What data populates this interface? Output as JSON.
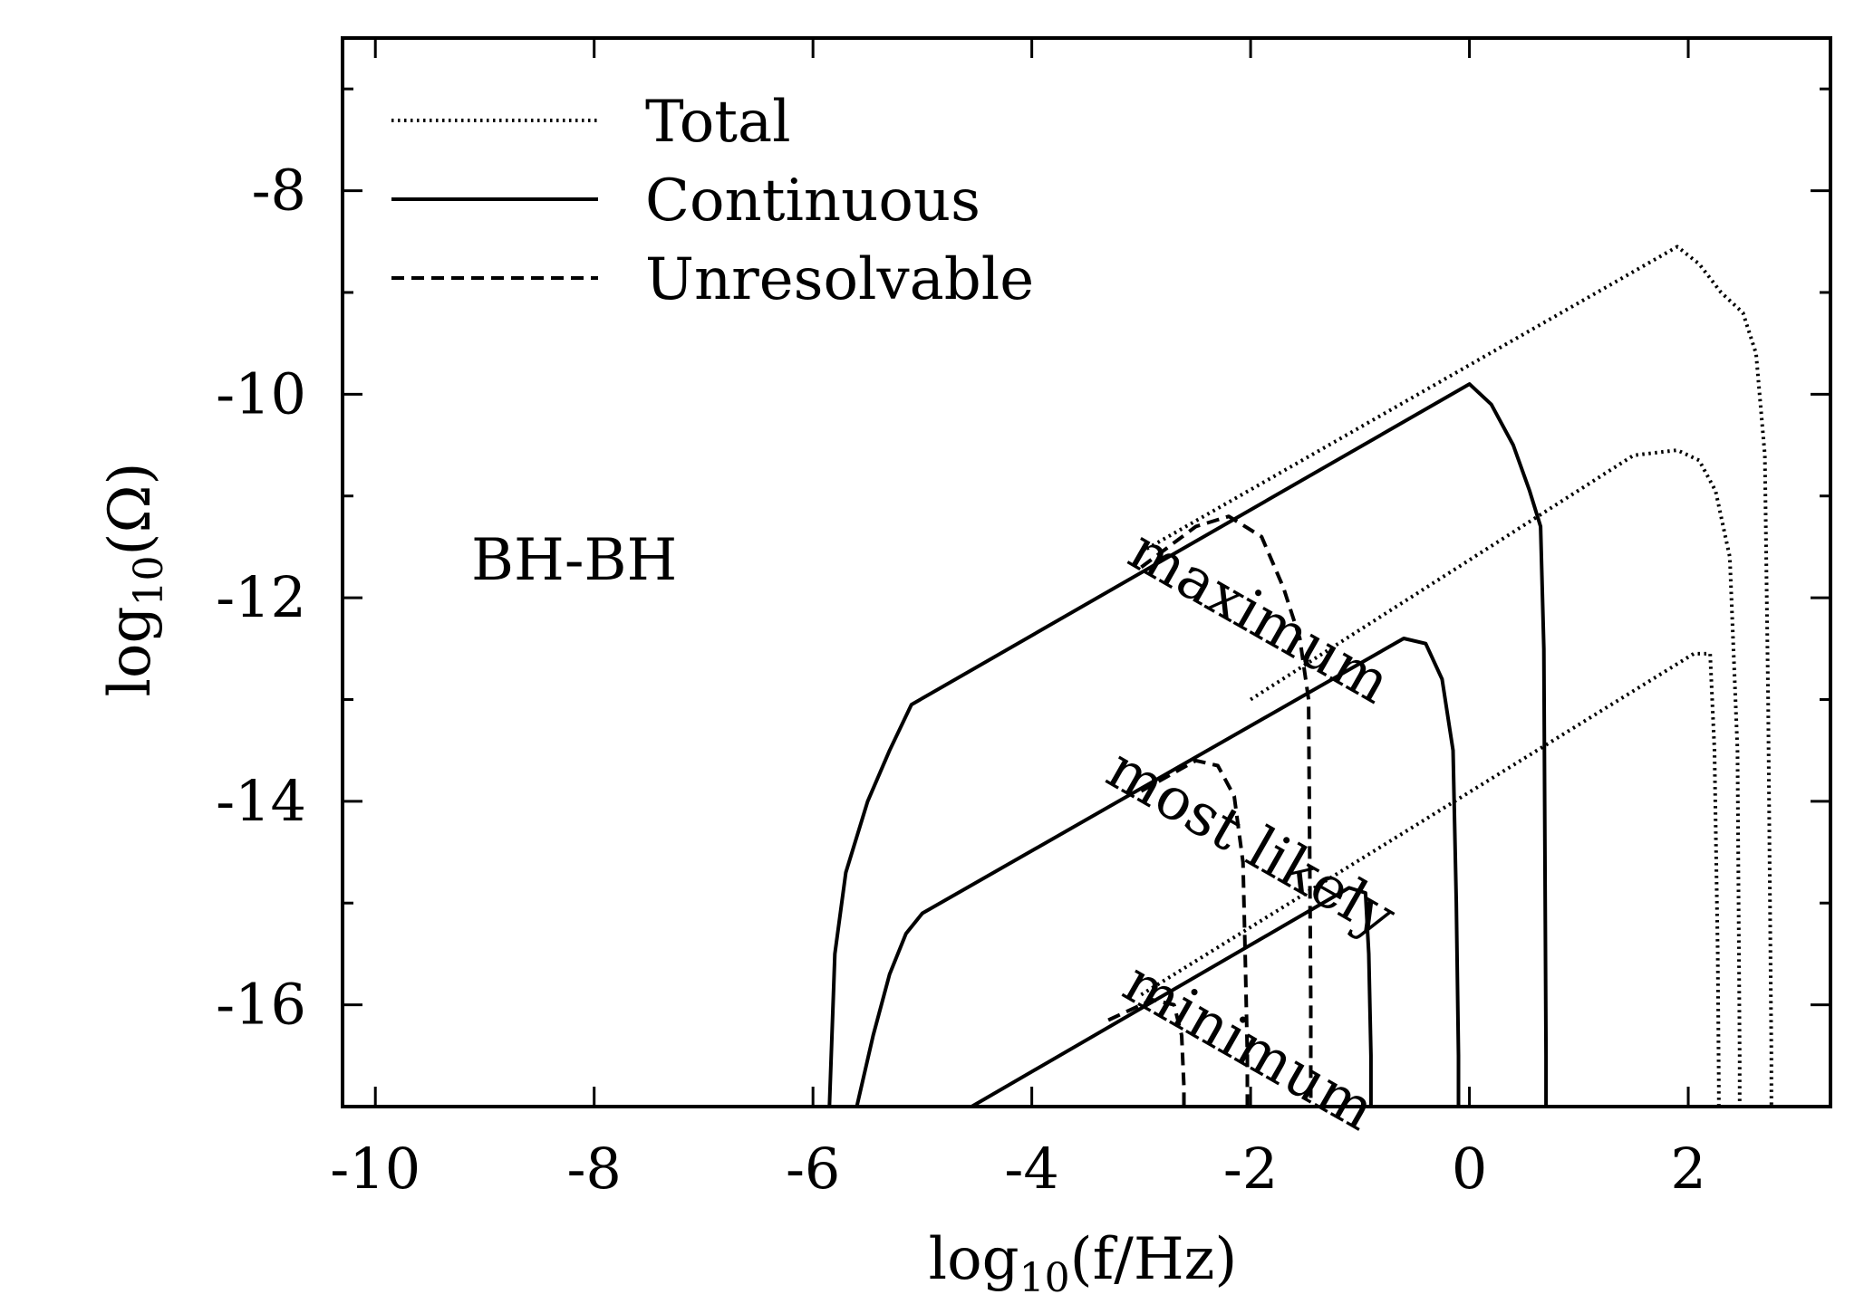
{
  "chart_data": {
    "type": "line",
    "title": "",
    "annotation": "BH-BH",
    "xlabel": {
      "prefix": "log",
      "sub": "10",
      "arg": "(f/Hz)"
    },
    "ylabel": {
      "prefix": "log",
      "sub": "10",
      "arg": "(Ω)"
    },
    "xlim": [
      -10.3,
      3.3
    ],
    "ylim": [
      -17,
      -6.5
    ],
    "xticks": [
      -10,
      -8,
      -6,
      -4,
      -2,
      0,
      2
    ],
    "xtick_labels": [
      "-10",
      "-8",
      "-6",
      "-4",
      "-2",
      "0",
      "2"
    ],
    "yticks": [
      -16,
      -14,
      -12,
      -10,
      -8
    ],
    "ytick_labels": [
      "-16",
      "-14",
      "-12",
      "-10",
      "-8"
    ],
    "legend": {
      "position": "top-left",
      "entries": [
        {
          "label": "Total",
          "style": "dotted"
        },
        {
          "label": "Continuous",
          "style": "solid"
        },
        {
          "label": "Unresolvable",
          "style": "dashed"
        }
      ]
    },
    "curve_labels": [
      {
        "text": "maximum",
        "x": -3.15,
        "y": -11.65
      },
      {
        "text": "most likely",
        "x": -3.35,
        "y": -13.8
      },
      {
        "text": "minimum",
        "x": -3.2,
        "y": -15.9
      }
    ],
    "series": [
      {
        "scenario": "maximum",
        "style": "dotted",
        "x": [
          -3.0,
          1.9,
          2.1,
          2.3,
          2.5,
          2.62,
          2.7,
          2.73,
          2.76,
          2.76
        ],
        "y": [
          -11.55,
          -8.55,
          -8.72,
          -9.0,
          -9.2,
          -9.6,
          -10.6,
          -13.0,
          -16.5,
          -17.0
        ]
      },
      {
        "scenario": "maximum",
        "style": "solid",
        "x": [
          -5.85,
          -5.8,
          -5.7,
          -5.5,
          -5.3,
          -5.1,
          0.0,
          0.2,
          0.4,
          0.55,
          0.65,
          0.68,
          0.7,
          0.7
        ],
        "y": [
          -17.0,
          -15.5,
          -14.7,
          -14.0,
          -13.5,
          -13.05,
          -9.9,
          -10.1,
          -10.5,
          -10.95,
          -11.3,
          -12.5,
          -16.5,
          -17.0
        ]
      },
      {
        "scenario": "maximum",
        "style": "dashed",
        "x": [
          -3.0,
          -2.5,
          -2.2,
          -1.9,
          -1.7,
          -1.55,
          -1.47,
          -1.45,
          -1.45
        ],
        "y": [
          -11.7,
          -11.3,
          -11.2,
          -11.4,
          -11.9,
          -12.4,
          -13.0,
          -16.0,
          -17.0
        ]
      },
      {
        "scenario": "most likely",
        "style": "dotted",
        "x": [
          -2.0,
          1.5,
          1.9,
          2.1,
          2.25,
          2.38,
          2.45,
          2.47,
          2.47
        ],
        "y": [
          -13.0,
          -10.6,
          -10.55,
          -10.65,
          -10.95,
          -11.6,
          -13.5,
          -16.5,
          -17.0
        ]
      },
      {
        "scenario": "most likely",
        "style": "solid",
        "x": [
          -5.6,
          -5.45,
          -5.3,
          -5.15,
          -5.0,
          -0.6,
          -0.4,
          -0.25,
          -0.15,
          -0.12,
          -0.1,
          -0.1
        ],
        "y": [
          -17.0,
          -16.3,
          -15.7,
          -15.3,
          -15.1,
          -12.4,
          -12.45,
          -12.8,
          -13.5,
          -15.0,
          -16.5,
          -17.0
        ]
      },
      {
        "scenario": "most likely",
        "style": "dashed",
        "x": [
          -3.0,
          -2.5,
          -2.3,
          -2.15,
          -2.07,
          -2.05,
          -2.03,
          -2.03
        ],
        "y": [
          -13.9,
          -13.6,
          -13.65,
          -13.95,
          -14.6,
          -15.5,
          -16.5,
          -17.0
        ]
      },
      {
        "scenario": "minimum",
        "style": "dotted",
        "x": [
          -3.0,
          2.05,
          2.2,
          2.24,
          2.27,
          2.28,
          2.28
        ],
        "y": [
          -15.9,
          -12.55,
          -12.55,
          -13.5,
          -15.5,
          -16.8,
          -17.0
        ]
      },
      {
        "scenario": "minimum",
        "style": "solid",
        "x": [
          -4.55,
          -1.1,
          -0.95,
          -0.92,
          -0.9,
          -0.9
        ],
        "y": [
          -17.0,
          -14.85,
          -14.9,
          -15.5,
          -16.5,
          -17.0
        ]
      },
      {
        "scenario": "minimum",
        "style": "dashed",
        "x": [
          -3.3,
          -2.9,
          -2.7,
          -2.63,
          -2.61,
          -2.61
        ],
        "y": [
          -16.15,
          -15.95,
          -16.0,
          -16.3,
          -16.8,
          -17.0
        ]
      }
    ]
  }
}
